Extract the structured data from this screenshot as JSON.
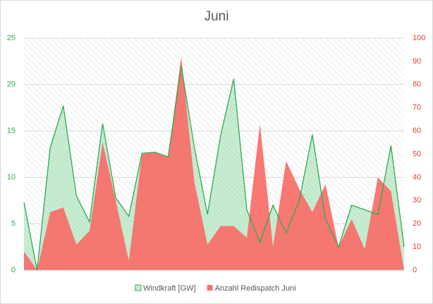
{
  "chart_data": {
    "type": "area",
    "title": "Juni",
    "categories": [
      null,
      null,
      null,
      null,
      null,
      null,
      null,
      null,
      null,
      null,
      null,
      null,
      null,
      null,
      null,
      null,
      null,
      null,
      null,
      null,
      null,
      null,
      null,
      null,
      null,
      null,
      null,
      null,
      null,
      null
    ],
    "series": [
      {
        "name": "Windkraft [GW]",
        "color": "#2eaa55",
        "axis": "y",
        "values": [
          7.3,
          0,
          13.2,
          17.7,
          8,
          5.2,
          15.8,
          7.8,
          5.8,
          12.6,
          12.7,
          12.2,
          22,
          13.2,
          6,
          14.5,
          20.6,
          6.5,
          3,
          7,
          4,
          7.5,
          14.6,
          5.5,
          2.5,
          7,
          6.5,
          6,
          13.4,
          2.5
        ]
      },
      {
        "name": "Anzahl Redispatch Juni",
        "color": "#f8716b",
        "axis": "y2",
        "values": [
          8,
          0,
          25,
          27,
          11,
          17,
          55,
          30,
          4,
          50,
          51,
          49,
          92,
          38,
          11,
          19,
          19,
          14,
          63,
          10,
          47,
          35,
          25,
          37,
          10,
          22,
          9,
          40,
          34,
          0
        ]
      }
    ],
    "ylim": [
      0,
      25
    ],
    "yticks": [
      0,
      5,
      10,
      15,
      20,
      25
    ],
    "y2lim": [
      0,
      100
    ],
    "y2ticks": [
      0,
      10,
      20,
      30,
      40,
      50,
      60,
      70,
      80,
      90,
      100
    ],
    "grid": true,
    "legend": "bottom"
  }
}
